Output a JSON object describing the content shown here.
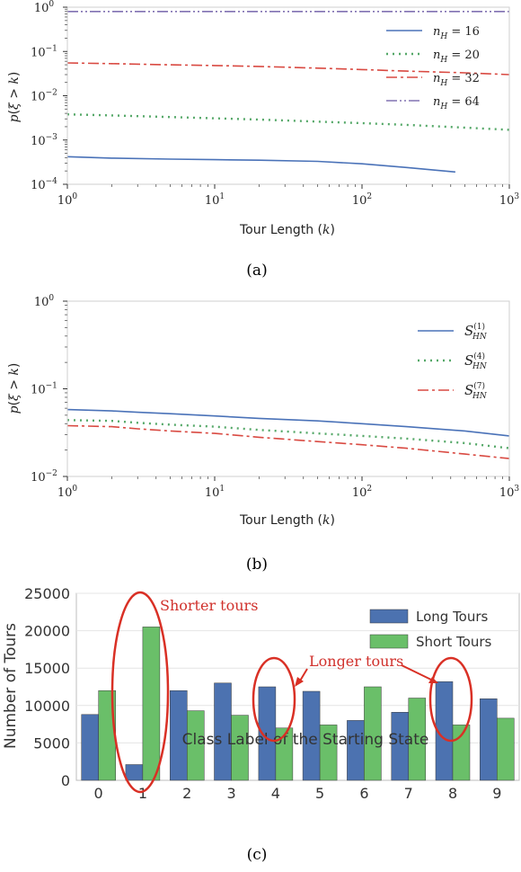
{
  "captions": [
    "(a)",
    "(b)",
    "(c)"
  ],
  "chart_data": [
    {
      "type": "line",
      "xscale": "log",
      "yscale": "log",
      "xlim": [
        1,
        1000
      ],
      "ylim": [
        0.0001,
        1
      ],
      "xlabel": "Tour Length (k)",
      "ylabel": "p(ξ > k)",
      "x_ticks": [
        "10^0",
        "10^1",
        "10^2",
        "10^3"
      ],
      "y_ticks": [
        "10^-4",
        "10^-3",
        "10^-2",
        "10^-1",
        "10^0"
      ],
      "legend_position": "top-right",
      "series": [
        {
          "name": "n_H = 16",
          "color": "#4a72b8",
          "dash": "solid",
          "x": [
            1,
            2,
            5,
            10,
            20,
            50,
            100,
            200,
            430
          ],
          "y": [
            0.00042,
            0.00039,
            0.00037,
            0.00036,
            0.00035,
            0.00033,
            0.00029,
            0.00024,
            0.00019
          ]
        },
        {
          "name": "n_H = 20",
          "color": "#55a868",
          "dash": "dotted",
          "x": [
            1,
            2,
            5,
            10,
            20,
            50,
            100,
            200,
            500,
            1000
          ],
          "y": [
            0.0038,
            0.0036,
            0.0033,
            0.0031,
            0.0029,
            0.0026,
            0.0024,
            0.0022,
            0.0019,
            0.0017
          ]
        },
        {
          "name": "n_H = 32",
          "color": "#d94a42",
          "dash": "dashdot",
          "x": [
            1,
            2,
            5,
            10,
            20,
            50,
            100,
            200,
            500,
            1000
          ],
          "y": [
            0.055,
            0.053,
            0.05,
            0.048,
            0.046,
            0.042,
            0.039,
            0.036,
            0.033,
            0.03
          ]
        },
        {
          "name": "n_H = 64",
          "color": "#8172b2",
          "dash": "dashdotdot",
          "x": [
            1,
            10,
            100,
            1000
          ],
          "y": [
            0.8,
            0.8,
            0.8,
            0.8
          ]
        }
      ]
    },
    {
      "type": "line",
      "xscale": "log",
      "yscale": "log",
      "xlim": [
        1,
        1000
      ],
      "ylim": [
        0.01,
        1
      ],
      "xlabel": "Tour Length (k)",
      "ylabel": "p(ξ > k)",
      "x_ticks": [
        "10^0",
        "10^1",
        "10^2",
        "10^3"
      ],
      "y_ticks": [
        "10^-2",
        "10^-1",
        "10^0"
      ],
      "legend_position": "right",
      "series": [
        {
          "name": "S_HN^(1)",
          "color": "#4a72b8",
          "dash": "solid",
          "x": [
            1,
            2,
            3,
            5,
            10,
            20,
            50,
            100,
            200,
            500,
            1000
          ],
          "y": [
            0.058,
            0.056,
            0.054,
            0.052,
            0.049,
            0.046,
            0.043,
            0.04,
            0.037,
            0.033,
            0.029
          ]
        },
        {
          "name": "S_HN^(4)",
          "color": "#55a868",
          "dash": "dotted",
          "x": [
            1,
            2,
            3,
            5,
            10,
            20,
            50,
            100,
            200,
            500,
            1000
          ],
          "y": [
            0.044,
            0.043,
            0.041,
            0.039,
            0.037,
            0.034,
            0.031,
            0.029,
            0.027,
            0.024,
            0.021
          ]
        },
        {
          "name": "S_HN^(7)",
          "color": "#d94a42",
          "dash": "dashdot",
          "x": [
            1,
            2,
            3,
            5,
            10,
            20,
            50,
            100,
            200,
            500,
            1000
          ],
          "y": [
            0.038,
            0.037,
            0.035,
            0.033,
            0.031,
            0.028,
            0.025,
            0.023,
            0.021,
            0.018,
            0.016
          ]
        }
      ]
    },
    {
      "type": "bar",
      "categories": [
        "0",
        "1",
        "2",
        "3",
        "4",
        "5",
        "6",
        "7",
        "8",
        "9"
      ],
      "xlabel": "Class Label of the Starting State",
      "ylabel": "Number of Tours",
      "ylim": [
        0,
        25000
      ],
      "y_ticks": [
        "0",
        "5000",
        "10000",
        "15000",
        "20000",
        "25000"
      ],
      "legend_position": "top-right",
      "series": [
        {
          "name": "Long Tours",
          "color": "#4c72b0",
          "values": [
            8800,
            2100,
            12000,
            13000,
            12500,
            11900,
            8000,
            9100,
            13200,
            10900
          ]
        },
        {
          "name": "Short Tours",
          "color": "#6abf69",
          "values": [
            12000,
            20500,
            9300,
            8700,
            7000,
            7400,
            12500,
            11000,
            7400,
            8300
          ]
        }
      ],
      "annotations": [
        "Shorter tours",
        "Longer tours"
      ]
    }
  ]
}
